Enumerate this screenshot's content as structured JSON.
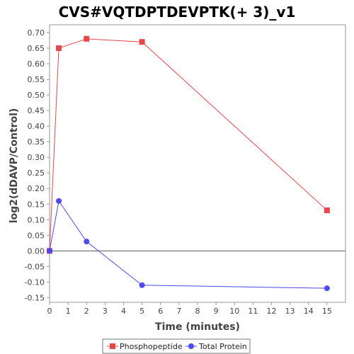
{
  "chart_data": {
    "type": "line",
    "title": "CVS#VQTDPTDEVPTK(+ 3)_v1",
    "xlabel": "Time (minutes)",
    "ylabel": "log2(dDAVP/Control)",
    "xlim": [
      0,
      16
    ],
    "ylim": [
      -0.165,
      0.725
    ],
    "x_ticks": [
      0,
      1,
      2,
      3,
      4,
      5,
      6,
      7,
      8,
      9,
      10,
      11,
      12,
      13,
      14,
      15
    ],
    "y_ticks": [
      -0.15,
      -0.1,
      -0.05,
      0.0,
      0.05,
      0.1,
      0.15,
      0.2,
      0.25,
      0.3,
      0.35,
      0.4,
      0.45,
      0.5,
      0.55,
      0.6,
      0.65,
      0.7
    ],
    "y_tick_labels": [
      "-0.15",
      "-0.10",
      "-0.05",
      "0.00",
      "0.05",
      "0.10",
      "0.15",
      "0.20",
      "0.25",
      "0.30",
      "0.35",
      "0.40",
      "0.45",
      "0.50",
      "0.55",
      "0.60",
      "0.65",
      "0.70"
    ],
    "grid": false,
    "legend_position": "bottom",
    "series": [
      {
        "name": "Phosphopeptide",
        "color": "#e8474a",
        "marker": "square",
        "x": [
          0,
          0.5,
          2,
          5,
          15
        ],
        "y": [
          0.0,
          0.65,
          0.68,
          0.67,
          0.13
        ]
      },
      {
        "name": "Total Protein",
        "color": "#4b4bf0",
        "marker": "circle",
        "x": [
          0,
          0.5,
          2,
          5,
          15
        ],
        "y": [
          0.0,
          0.16,
          0.03,
          -0.11,
          -0.12
        ]
      }
    ]
  }
}
